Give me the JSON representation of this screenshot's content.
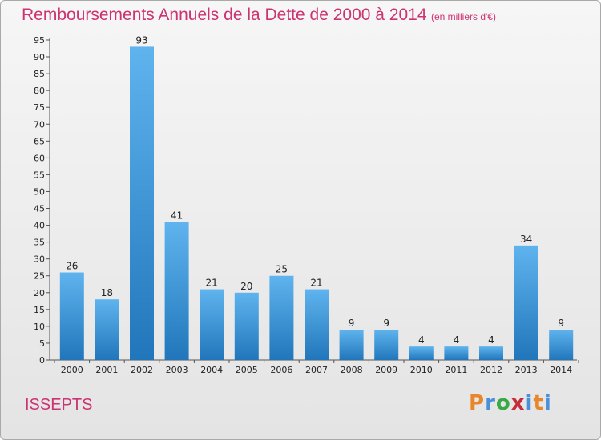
{
  "header": {
    "title": "Remboursements Annuels de la Dette de 2000 à 2014",
    "unit": "(en milliers d'€)"
  },
  "footer": {
    "commune": "ISSEPTS",
    "logo_text": "Proxiti",
    "logo_colors": [
      "#e8862a",
      "#4a90d9",
      "#3aa845",
      "#c62d3a",
      "#4a90d9",
      "#e8862a",
      "#4a90d9"
    ]
  },
  "colors": {
    "accent": "#cc3370",
    "bar_light": "#5fb4ee",
    "bar_dark": "#2176bb"
  },
  "chart_data": {
    "type": "bar",
    "categories": [
      "2000",
      "2001",
      "2002",
      "2003",
      "2004",
      "2005",
      "2006",
      "2007",
      "2008",
      "2009",
      "2010",
      "2011",
      "2012",
      "2013",
      "2014"
    ],
    "values": [
      26,
      18,
      93,
      41,
      21,
      20,
      25,
      21,
      9,
      9,
      4,
      4,
      4,
      34,
      9
    ],
    "title": "Remboursements Annuels de la Dette de 2000 à 2014",
    "subtitle": "(en milliers d'€)",
    "xlabel": "",
    "ylabel": "",
    "ylim": [
      0,
      95
    ],
    "ytick_step": 5,
    "grid": false,
    "legend": "none",
    "data_labels": true
  }
}
